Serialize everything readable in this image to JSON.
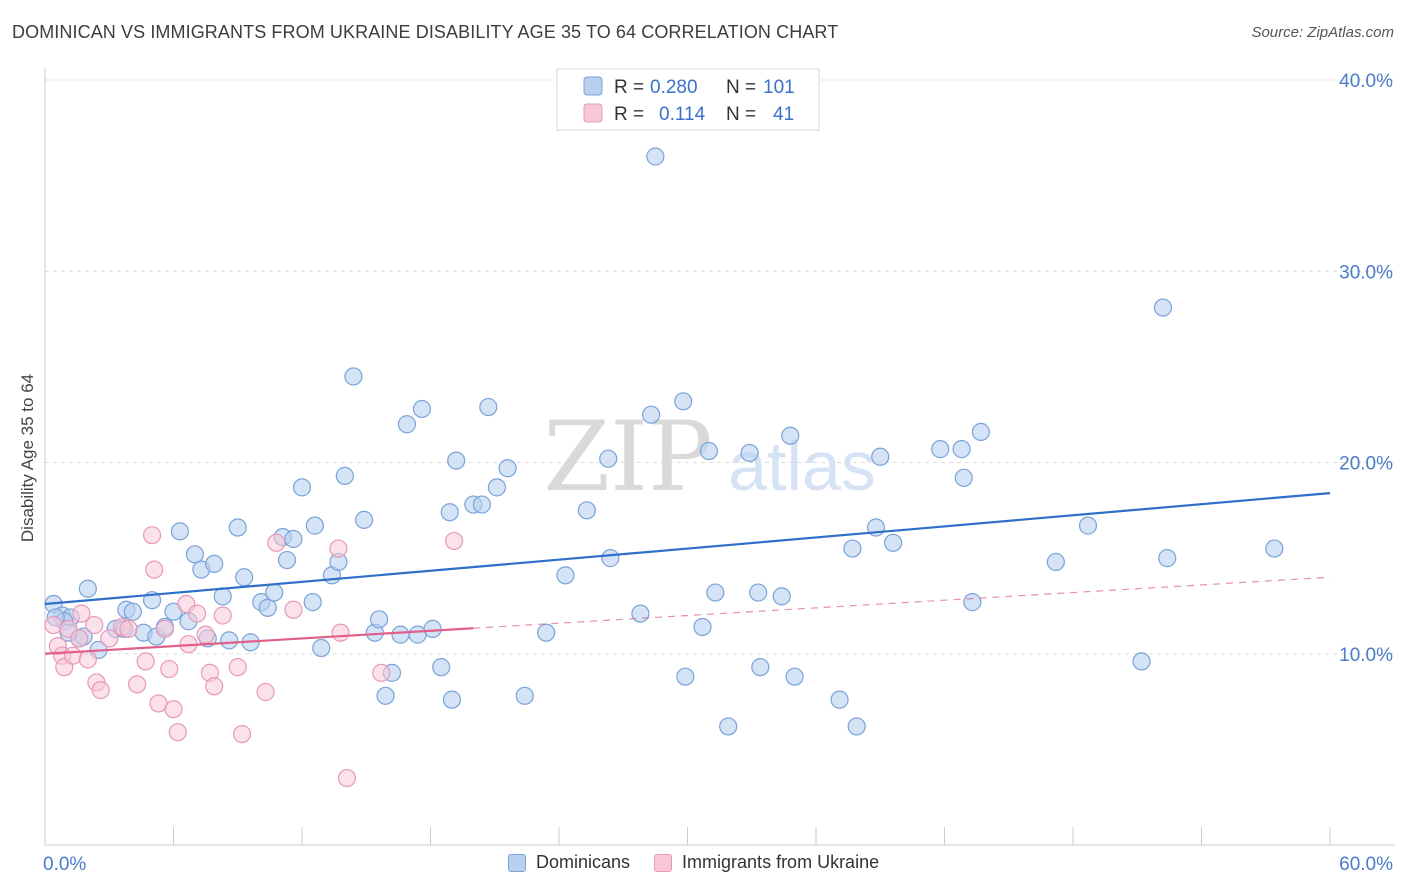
{
  "header": {
    "title": "DOMINICAN VS IMMIGRANTS FROM UKRAINE DISABILITY AGE 35 TO 64 CORRELATION CHART",
    "source": "Source: ZipAtlas.com"
  },
  "watermark": {
    "zip": "ZIP",
    "atlas": "atlas"
  },
  "legend_top": [
    {
      "r_label": "R =",
      "r_value": "0.280",
      "n_label": "N =",
      "n_value": "101"
    },
    {
      "r_label": "R =",
      "r_value": "0.114",
      "n_label": "N =",
      "n_value": "41"
    }
  ],
  "legend_bottom": {
    "series1": "Dominicans",
    "series2": "Immigrants from Ukraine"
  },
  "colors": {
    "blue_fill": "#b8d0f0",
    "blue_stroke": "#7aa3d8",
    "blue_line": "#2f6fc8",
    "pink_fill": "#f8c8d8",
    "pink_stroke": "#e898b8",
    "pink_line": "#e0608a",
    "axis_text": "#4a7cc8",
    "grid": "#dcdcdc"
  },
  "chart_data": {
    "type": "scatter",
    "title": "DOMINICAN VS IMMIGRANTS FROM UKRAINE DISABILITY AGE 35 TO 64 CORRELATION CHART",
    "xlabel": "",
    "ylabel": "Disability Age 35 to 64",
    "xlim": [
      0,
      60
    ],
    "ylim": [
      0,
      40
    ],
    "x_tick_labels": [
      "0.0%",
      "60.0%"
    ],
    "y_ticks": [
      10,
      20,
      30,
      40
    ],
    "y_tick_labels": [
      "10.0%",
      "20.0%",
      "30.0%",
      "40.0%"
    ],
    "series": [
      {
        "name": "Dominicans",
        "r": 0.28,
        "n": 101,
        "trend": {
          "x": [
            0,
            60
          ],
          "y": [
            12.6,
            18.4
          ],
          "dashed_from": null
        },
        "points": [
          [
            0.4,
            12.6
          ],
          [
            0.8,
            12.0
          ],
          [
            1.2,
            11.9
          ],
          [
            1.6,
            10.8
          ],
          [
            0.9,
            11.7
          ],
          [
            1.8,
            10.9
          ],
          [
            2.0,
            13.4
          ],
          [
            2.5,
            10.2
          ],
          [
            3.3,
            11.3
          ],
          [
            3.8,
            12.3
          ],
          [
            4.1,
            12.2
          ],
          [
            4.6,
            11.1
          ],
          [
            5.0,
            12.8
          ],
          [
            5.2,
            10.9
          ],
          [
            5.6,
            11.4
          ],
          [
            6.0,
            12.2
          ],
          [
            6.3,
            16.4
          ],
          [
            6.7,
            11.7
          ],
          [
            7.0,
            15.2
          ],
          [
            7.3,
            14.4
          ],
          [
            7.6,
            10.8
          ],
          [
            7.9,
            14.7
          ],
          [
            8.3,
            13.0
          ],
          [
            8.6,
            10.7
          ],
          [
            9.0,
            16.6
          ],
          [
            9.3,
            14.0
          ],
          [
            9.6,
            10.6
          ],
          [
            10.1,
            12.7
          ],
          [
            10.4,
            12.4
          ],
          [
            10.7,
            13.2
          ],
          [
            11.1,
            16.1
          ],
          [
            11.3,
            14.9
          ],
          [
            11.6,
            16.0
          ],
          [
            12.0,
            18.7
          ],
          [
            12.5,
            12.7
          ],
          [
            12.6,
            16.7
          ],
          [
            12.9,
            10.3
          ],
          [
            13.4,
            14.1
          ],
          [
            13.7,
            14.8
          ],
          [
            14.0,
            19.3
          ],
          [
            14.4,
            24.5
          ],
          [
            14.9,
            17.0
          ],
          [
            15.4,
            11.1
          ],
          [
            15.6,
            11.8
          ],
          [
            15.9,
            7.8
          ],
          [
            16.2,
            9.0
          ],
          [
            16.6,
            11.0
          ],
          [
            16.9,
            22.0
          ],
          [
            17.4,
            11.0
          ],
          [
            17.6,
            22.8
          ],
          [
            18.1,
            11.3
          ],
          [
            18.5,
            9.3
          ],
          [
            18.9,
            17.4
          ],
          [
            19.0,
            7.6
          ],
          [
            19.2,
            20.1
          ],
          [
            20.0,
            17.8
          ],
          [
            20.4,
            17.8
          ],
          [
            20.7,
            22.9
          ],
          [
            21.1,
            18.7
          ],
          [
            21.6,
            19.7
          ],
          [
            22.4,
            7.8
          ],
          [
            23.4,
            11.1
          ],
          [
            24.3,
            14.1
          ],
          [
            25.3,
            17.5
          ],
          [
            26.3,
            20.2
          ],
          [
            26.4,
            15.0
          ],
          [
            27.8,
            12.1
          ],
          [
            28.3,
            22.5
          ],
          [
            28.5,
            36.0
          ],
          [
            29.8,
            23.2
          ],
          [
            29.9,
            8.8
          ],
          [
            30.7,
            11.4
          ],
          [
            31.0,
            20.6
          ],
          [
            31.3,
            13.2
          ],
          [
            31.9,
            6.2
          ],
          [
            32.9,
            20.5
          ],
          [
            33.3,
            13.2
          ],
          [
            33.4,
            9.3
          ],
          [
            34.4,
            13.0
          ],
          [
            34.8,
            21.4
          ],
          [
            35.0,
            8.8
          ],
          [
            37.1,
            7.6
          ],
          [
            37.7,
            15.5
          ],
          [
            37.9,
            6.2
          ],
          [
            38.8,
            16.6
          ],
          [
            39.0,
            20.3
          ],
          [
            39.6,
            15.8
          ],
          [
            41.8,
            20.7
          ],
          [
            42.8,
            20.7
          ],
          [
            42.9,
            19.2
          ],
          [
            43.3,
            12.7
          ],
          [
            43.7,
            21.6
          ],
          [
            47.2,
            14.8
          ],
          [
            48.7,
            16.7
          ],
          [
            51.2,
            9.6
          ],
          [
            52.2,
            28.1
          ],
          [
            52.4,
            15.0
          ],
          [
            57.4,
            15.5
          ],
          [
            0.5,
            11.9
          ],
          [
            1.1,
            11.1
          ],
          [
            3.7,
            11.3
          ]
        ]
      },
      {
        "name": "Immigrants from Ukraine",
        "r": 0.114,
        "n": 41,
        "trend": {
          "x": [
            0,
            60
          ],
          "y": [
            10.0,
            14.0
          ],
          "solid_until": 20
        },
        "points": [
          [
            0.4,
            11.5
          ],
          [
            0.6,
            10.4
          ],
          [
            0.8,
            9.9
          ],
          [
            0.9,
            9.3
          ],
          [
            1.1,
            11.3
          ],
          [
            1.3,
            9.9
          ],
          [
            1.6,
            10.8
          ],
          [
            1.7,
            12.1
          ],
          [
            2.0,
            9.7
          ],
          [
            2.3,
            11.5
          ],
          [
            2.4,
            8.5
          ],
          [
            2.6,
            8.1
          ],
          [
            3.0,
            10.8
          ],
          [
            3.6,
            11.4
          ],
          [
            3.9,
            11.3
          ],
          [
            4.3,
            8.4
          ],
          [
            4.7,
            9.6
          ],
          [
            5.0,
            16.2
          ],
          [
            5.1,
            14.4
          ],
          [
            5.3,
            7.4
          ],
          [
            5.6,
            11.3
          ],
          [
            5.8,
            9.2
          ],
          [
            6.0,
            7.1
          ],
          [
            6.2,
            5.9
          ],
          [
            6.6,
            12.6
          ],
          [
            6.7,
            10.5
          ],
          [
            7.1,
            12.1
          ],
          [
            7.5,
            11.0
          ],
          [
            7.7,
            9.0
          ],
          [
            7.9,
            8.3
          ],
          [
            8.3,
            12.0
          ],
          [
            9.0,
            9.3
          ],
          [
            9.2,
            5.8
          ],
          [
            10.3,
            8.0
          ],
          [
            10.8,
            15.8
          ],
          [
            11.6,
            12.3
          ],
          [
            13.7,
            15.5
          ],
          [
            13.8,
            11.1
          ],
          [
            14.1,
            3.5
          ],
          [
            15.7,
            9.0
          ],
          [
            19.1,
            15.9
          ]
        ]
      }
    ]
  }
}
